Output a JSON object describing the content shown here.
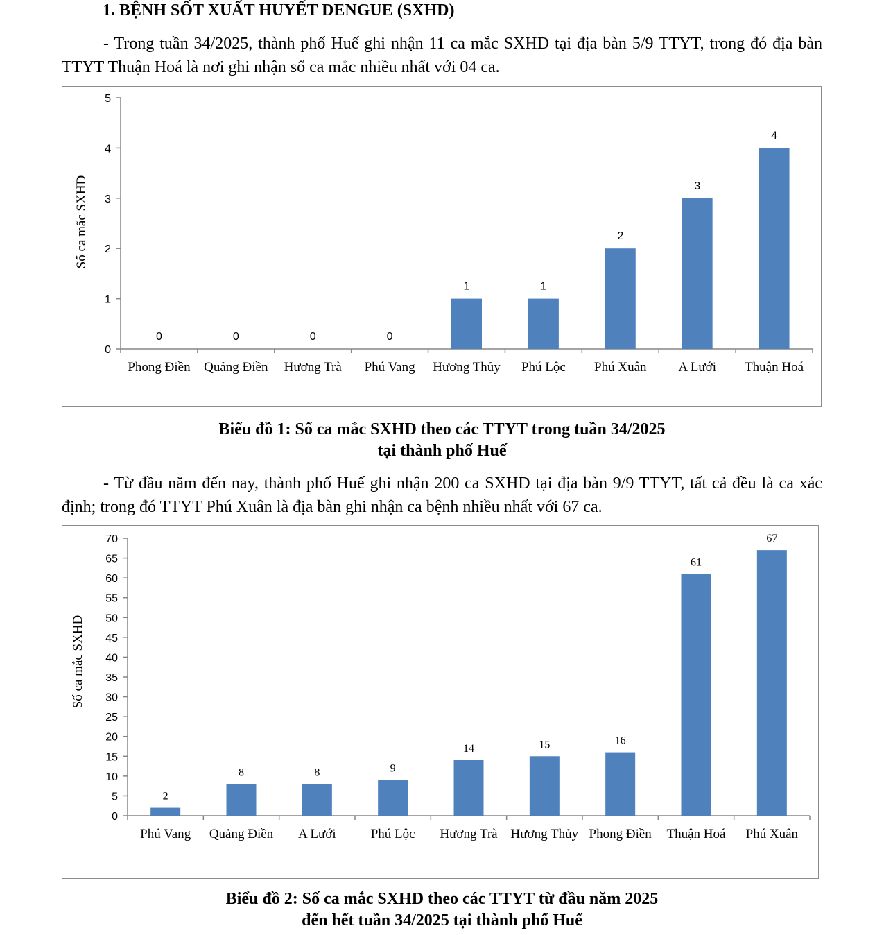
{
  "section": {
    "heading": "1. BỆNH SỐT XUẤT HUYẾT DENGUE (SXHD)",
    "para1": "- Trong tuần 34/2025, thành phố Huế ghi nhận 11 ca mắc SXHD tại địa bàn 5/9 TTYT, trong đó địa bàn TTYT Thuận Hoá là nơi ghi nhận số ca mắc nhiều nhất với 04 ca.",
    "caption1_line1": "Biểu đồ 1: Số ca mắc SXHD theo các TTYT trong tuần 34/2025",
    "caption1_line2": "tại thành phố Huế",
    "para2": "- Từ đầu năm đến nay, thành phố Huế ghi nhận 200 ca SXHD tại địa bàn 9/9 TTYT, tất cả đều là ca xác định; trong đó TTYT Phú Xuân là địa bàn ghi nhận ca bệnh nhiều nhất với 67 ca.",
    "caption2_line1": "Biểu đồ 2: Số ca mắc SXHD theo các TTYT từ đầu năm 2025",
    "caption2_line2": "đến hết tuần 34/2025 tại thành phố Huế"
  },
  "colors": {
    "bar": "#4f81bd",
    "axis": "#868686",
    "border": "#8c8c8c"
  },
  "chart_data": [
    {
      "type": "bar",
      "title": "Biểu đồ 1: Số ca mắc SXHD theo các TTYT trong tuần 34/2025 tại thành phố Huế",
      "xlabel": "",
      "ylabel": "Số ca mắc SXHD",
      "ylim": [
        0,
        5
      ],
      "ytick_step": 1,
      "yticks": [
        "0",
        "1",
        "2",
        "3",
        "4",
        "5"
      ],
      "categories": [
        "Phong Điền",
        "Quảng Điền",
        "Hương Trà",
        "Phú Vang",
        "Hương Thủy",
        "Phú Lộc",
        "Phú Xuân",
        "A Lưới",
        "Thuận Hoá"
      ],
      "values": [
        0,
        0,
        0,
        0,
        1,
        1,
        2,
        3,
        4
      ],
      "data_labels": [
        "0",
        "0",
        "0",
        "0",
        "1",
        "1",
        "2",
        "3",
        "4"
      ],
      "grid": false,
      "legend": "none"
    },
    {
      "type": "bar",
      "title": "Biểu đồ 2: Số ca mắc SXHD theo các TTYT từ đầu năm 2025 đến hết tuần 34/2025 tại thành phố Huế",
      "xlabel": "",
      "ylabel": "Số ca mắc SXHD",
      "ylim": [
        0,
        70
      ],
      "ytick_step": 5,
      "yticks": [
        "0",
        "5",
        "10",
        "15",
        "20",
        "25",
        "30",
        "35",
        "40",
        "45",
        "50",
        "55",
        "60",
        "65",
        "70"
      ],
      "categories": [
        "Phú Vang",
        "Quảng Điền",
        "A Lưới",
        "Phú Lộc",
        "Hương Trà",
        "Hương Thủy",
        "Phong Điền",
        "Thuận Hoá",
        "Phú Xuân"
      ],
      "values": [
        2,
        8,
        8,
        9,
        14,
        15,
        16,
        61,
        67
      ],
      "data_labels": [
        "2",
        "8",
        "8",
        "9",
        "14",
        "15",
        "16",
        "61",
        "67"
      ],
      "grid": false,
      "legend": "none"
    }
  ]
}
